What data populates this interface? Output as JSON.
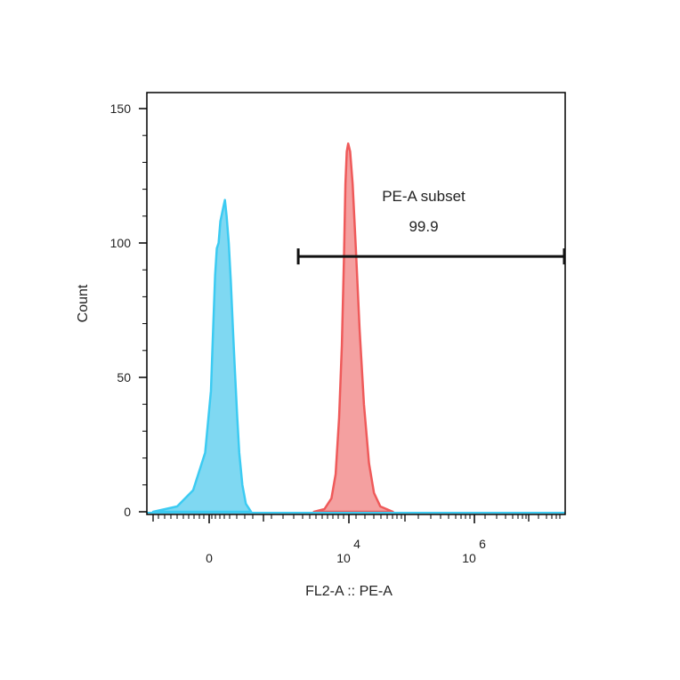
{
  "chart_data": {
    "type": "area",
    "xlabel": "FL2-A :: PE-A",
    "ylabel": "Count",
    "x_scale": "biexponential",
    "x_ticks": [
      {
        "base": "0",
        "exp": ""
      },
      {
        "base": "10",
        "exp": "4"
      },
      {
        "base": "10",
        "exp": "6"
      }
    ],
    "y_ticks": [
      "0",
      "50",
      "100",
      "150"
    ],
    "ylim": [
      0,
      152
    ],
    "colors": {
      "control_fill": "#7fd8f2",
      "control_line": "#3ccbf2",
      "stained_fill": "#f4a0a0",
      "stained_line": "#ef5a5a",
      "axis": "#000000",
      "gate": "#111111"
    },
    "series": [
      {
        "color_key": "control",
        "points": [
          [
            -0.7,
            0
          ],
          [
            -0.4,
            2
          ],
          [
            -0.2,
            8
          ],
          [
            -0.05,
            22
          ],
          [
            0.05,
            45
          ],
          [
            0.12,
            70
          ],
          [
            0.17,
            88
          ],
          [
            0.22,
            98
          ],
          [
            0.27,
            100
          ],
          [
            0.32,
            108
          ],
          [
            0.4,
            113
          ],
          [
            0.45,
            116
          ],
          [
            0.5,
            110
          ],
          [
            0.56,
            100
          ],
          [
            0.62,
            86
          ],
          [
            0.68,
            68
          ],
          [
            0.74,
            52
          ],
          [
            0.8,
            36
          ],
          [
            0.86,
            22
          ],
          [
            0.95,
            10
          ],
          [
            1.05,
            3
          ],
          [
            1.2,
            0
          ]
        ]
      },
      {
        "color_key": "stained",
        "points": [
          [
            3.0,
            0
          ],
          [
            3.3,
            1
          ],
          [
            3.5,
            5
          ],
          [
            3.62,
            14
          ],
          [
            3.72,
            35
          ],
          [
            3.8,
            62
          ],
          [
            3.86,
            95
          ],
          [
            3.9,
            122
          ],
          [
            3.94,
            134
          ],
          [
            3.98,
            137
          ],
          [
            4.02,
            134
          ],
          [
            4.06,
            122
          ],
          [
            4.11,
            98
          ],
          [
            4.17,
            68
          ],
          [
            4.24,
            40
          ],
          [
            4.32,
            18
          ],
          [
            4.4,
            7
          ],
          [
            4.5,
            2
          ],
          [
            4.7,
            0
          ]
        ]
      }
    ],
    "gate": {
      "name": "PE-A subset",
      "percent": "99.9",
      "x_start": 2.55,
      "x_end": 7.65,
      "y": 95
    }
  }
}
